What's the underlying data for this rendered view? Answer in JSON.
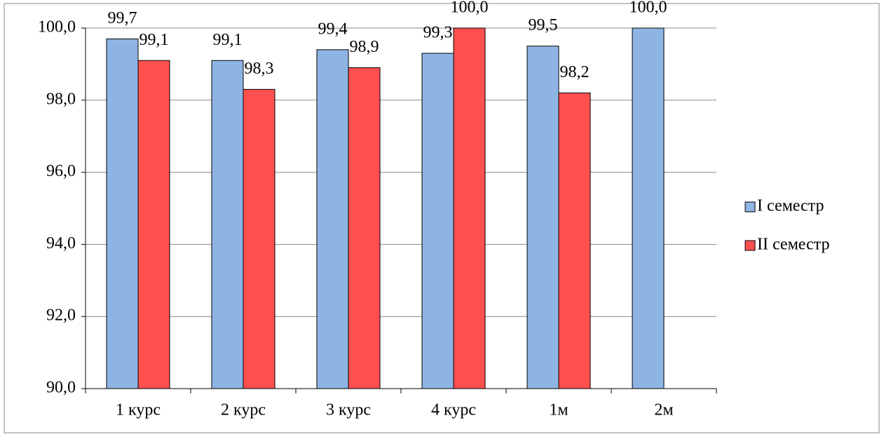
{
  "chart_data": {
    "type": "bar",
    "categories": [
      "1 курс",
      "2 курс",
      "3 курс",
      "4 курс",
      "1м",
      "2м"
    ],
    "series": [
      {
        "name": "I семестр",
        "color": "#8eb4e3",
        "values": [
          99.7,
          99.1,
          99.4,
          99.3,
          99.5,
          100.0
        ],
        "value_labels": [
          "99,7",
          "99,1",
          "99,4",
          "99,3",
          "99,5",
          "100,0"
        ]
      },
      {
        "name": "II семестр",
        "color": "#ff5050",
        "values": [
          99.1,
          98.3,
          98.9,
          100.0,
          98.2,
          null
        ],
        "value_labels": [
          "99,1",
          "98,3",
          "98,9",
          "100,0",
          "98,2",
          null
        ]
      }
    ],
    "ylim": [
      90,
      100
    ],
    "yticks": [
      {
        "value": 90,
        "label": "90,0"
      },
      {
        "value": 92,
        "label": "92,0"
      },
      {
        "value": 94,
        "label": "94,0"
      },
      {
        "value": 96,
        "label": "96,0"
      },
      {
        "value": 98,
        "label": "98,0"
      },
      {
        "value": 100,
        "label": "100,0"
      }
    ],
    "grid": true,
    "legend": "right"
  }
}
